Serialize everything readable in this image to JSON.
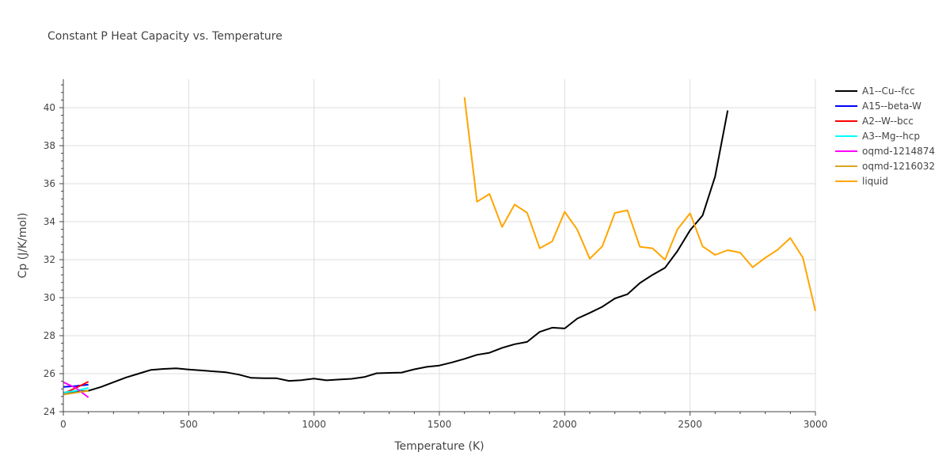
{
  "chart_data": {
    "type": "line",
    "title": "Constant P Heat Capacity vs. Temperature",
    "xlabel": "Temperature (K)",
    "ylabel": "Cp (J/K/mol)",
    "xlim": [
      0,
      3000
    ],
    "ylim": [
      24,
      41.5
    ],
    "xticks": [
      0,
      500,
      1000,
      1500,
      2000,
      2500,
      3000
    ],
    "xtick_labels": [
      "0",
      "500",
      "1000",
      "1500",
      "2000",
      "2500",
      "3000"
    ],
    "yticks": [
      24,
      26,
      28,
      30,
      32,
      34,
      36,
      38,
      40
    ],
    "ytick_labels": [
      "24",
      "26",
      "28",
      "30",
      "32",
      "34",
      "36",
      "38",
      "40"
    ],
    "grid": true,
    "legend_position": "right",
    "series": [
      {
        "name": "A1--Cu--fcc",
        "color": "#000000",
        "x": [
          0,
          50,
          100,
          150,
          200,
          250,
          300,
          350,
          400,
          450,
          500,
          550,
          600,
          650,
          700,
          750,
          800,
          850,
          900,
          950,
          1000,
          1050,
          1100,
          1150,
          1200,
          1250,
          1300,
          1350,
          1400,
          1450,
          1500,
          1550,
          1600,
          1650,
          1700,
          1750,
          1800,
          1850,
          1900,
          1950,
          2000,
          2050,
          2100,
          2150,
          2200,
          2250,
          2300,
          2350,
          2400,
          2450,
          2500,
          2550,
          2600,
          2650
        ],
        "y": [
          25.0,
          25.05,
          25.1,
          25.3,
          25.55,
          25.8,
          26.0,
          26.2,
          26.25,
          26.28,
          26.22,
          26.17,
          26.12,
          26.07,
          25.95,
          25.78,
          25.76,
          25.76,
          25.62,
          25.66,
          25.74,
          25.65,
          25.69,
          25.73,
          25.82,
          26.02,
          26.04,
          26.06,
          26.23,
          26.36,
          26.43,
          26.59,
          26.78,
          26.99,
          27.1,
          27.36,
          27.55,
          27.67,
          28.2,
          28.42,
          28.38,
          28.9,
          29.2,
          29.52,
          29.96,
          30.18,
          30.77,
          31.2,
          31.57,
          32.46,
          33.55,
          34.33,
          36.38,
          39.85
        ]
      },
      {
        "name": "A15--beta-W",
        "color": "#0000ff",
        "x": [
          0,
          50,
          100
        ],
        "y": [
          25.3,
          25.35,
          25.42
        ]
      },
      {
        "name": "A2--W--bcc",
        "color": "#ff0000",
        "x": [
          0,
          50,
          100
        ],
        "y": [
          24.95,
          25.25,
          25.58
        ]
      },
      {
        "name": "A3--Mg--hcp",
        "color": "#00ffff",
        "x": [
          0,
          50,
          100
        ],
        "y": [
          25.0,
          25.1,
          25.25
        ]
      },
      {
        "name": "oqmd-1214874",
        "color": "#ff00ff",
        "x": [
          0,
          50,
          100
        ],
        "y": [
          25.55,
          25.25,
          24.75
        ]
      },
      {
        "name": "oqmd-1216032",
        "color": "#daa520",
        "x": [
          0,
          50,
          100
        ],
        "y": [
          24.9,
          25.0,
          25.1
        ]
      },
      {
        "name": "liquid",
        "color": "#ffa500",
        "x": [
          1600,
          1650,
          1700,
          1750,
          1800,
          1850,
          1900,
          1950,
          2000,
          2050,
          2100,
          2150,
          2200,
          2250,
          2300,
          2350,
          2400,
          2450,
          2500,
          2550,
          2600,
          2650,
          2700,
          2750,
          2800,
          2850,
          2900,
          2950,
          3000
        ],
        "y": [
          40.55,
          35.05,
          35.46,
          33.72,
          34.9,
          34.47,
          32.6,
          32.96,
          34.52,
          33.58,
          32.05,
          32.7,
          34.46,
          34.6,
          32.68,
          32.6,
          32.0,
          33.6,
          34.44,
          32.7,
          32.25,
          32.5,
          32.37,
          31.6,
          32.1,
          32.53,
          33.14,
          32.1,
          29.3
        ]
      }
    ]
  }
}
